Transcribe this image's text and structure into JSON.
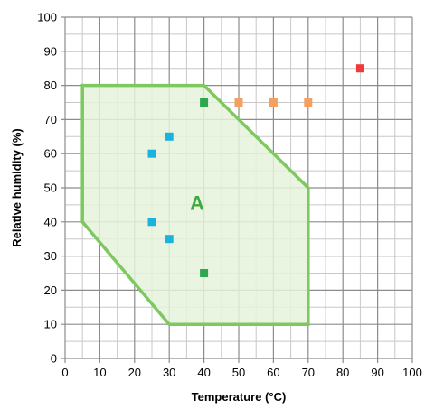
{
  "chart_data": {
    "type": "scatter",
    "xlabel": "Temperature (°C)",
    "ylabel": "Relative humidity (%)",
    "xlim": [
      0,
      100
    ],
    "ylim": [
      0,
      100
    ],
    "x_ticks": [
      0,
      10,
      20,
      30,
      40,
      50,
      60,
      70,
      80,
      90,
      100
    ],
    "y_ticks": [
      0,
      10,
      20,
      30,
      40,
      50,
      60,
      70,
      80,
      90,
      100
    ],
    "minor_grid_step": 5,
    "grid": true,
    "region": {
      "label": "A",
      "label_position": [
        38,
        45
      ],
      "vertices": [
        [
          5,
          80
        ],
        [
          40,
          80
        ],
        [
          70,
          50
        ],
        [
          70,
          10
        ],
        [
          30,
          10
        ],
        [
          5,
          40
        ]
      ],
      "stroke_color": "#7dc85f",
      "fill_color": "#e6f3dc"
    },
    "series": [
      {
        "color": "#19b3dd",
        "points": [
          [
            25,
            60
          ],
          [
            30,
            65
          ],
          [
            25,
            40
          ],
          [
            30,
            35
          ]
        ]
      },
      {
        "color": "#2ea84f",
        "points": [
          [
            40,
            75
          ],
          [
            40,
            25
          ]
        ]
      },
      {
        "color": "#f4a060",
        "points": [
          [
            50,
            75
          ],
          [
            60,
            75
          ],
          [
            70,
            75
          ]
        ]
      },
      {
        "color": "#f03a3a",
        "points": [
          [
            85,
            85
          ]
        ]
      }
    ]
  }
}
